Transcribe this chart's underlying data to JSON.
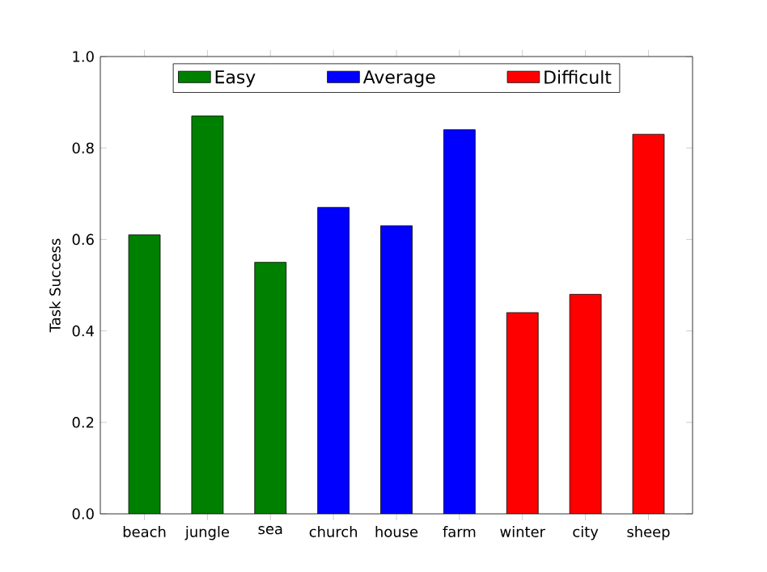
{
  "chart_data": {
    "type": "bar",
    "ylabel": "Task Success",
    "categories": [
      "beach",
      "jungle",
      "sea",
      "church",
      "house",
      "farm",
      "winter",
      "city",
      "sheep"
    ],
    "series": [
      {
        "name": "Easy",
        "color": "#008000",
        "values": [
          0.61,
          0.87,
          0.55,
          null,
          null,
          null,
          null,
          null,
          null
        ]
      },
      {
        "name": "Average",
        "color": "#0000ff",
        "values": [
          null,
          null,
          null,
          0.67,
          0.63,
          0.84,
          null,
          null,
          null
        ]
      },
      {
        "name": "Difficult",
        "color": "#ff0000",
        "values": [
          null,
          null,
          null,
          null,
          null,
          null,
          0.44,
          0.48,
          0.83
        ]
      }
    ],
    "ylim": [
      0,
      1
    ],
    "yticks": [
      {
        "value": 0,
        "label": "0.0"
      },
      {
        "value": 0.2,
        "label": "0.2"
      },
      {
        "value": 0.4,
        "label": "0.4"
      },
      {
        "value": 0.6,
        "label": "0.6"
      },
      {
        "value": 0.8,
        "label": "0.8"
      },
      {
        "value": 1,
        "label": "1.0"
      }
    ],
    "legend": "top",
    "grid": false
  }
}
